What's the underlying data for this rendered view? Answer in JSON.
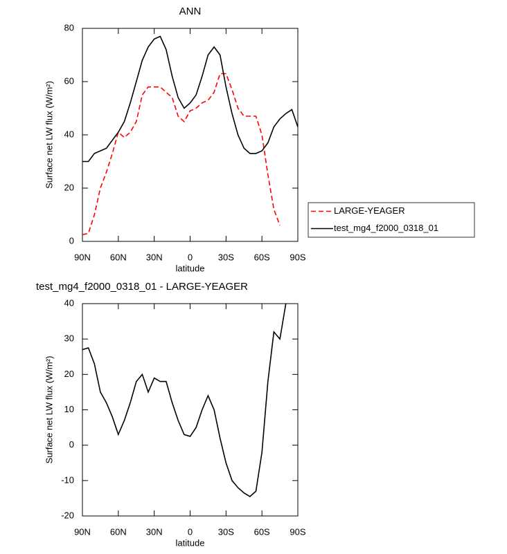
{
  "chart_data": [
    {
      "type": "line",
      "title": "ANN",
      "xlabel": "latitude",
      "ylabel": "Surface net LW flux (W/m²)",
      "x": [
        90,
        85,
        80,
        75,
        70,
        65,
        60,
        55,
        50,
        45,
        40,
        35,
        30,
        25,
        20,
        15,
        10,
        5,
        0,
        -5,
        -10,
        -15,
        -20,
        -25,
        -30,
        -35,
        -40,
        -45,
        -50,
        -55,
        -60,
        -65,
        -70,
        -75,
        -80,
        -85,
        -90
      ],
      "series": [
        {
          "name": "LARGE-YEAGER",
          "color": "#ff0000",
          "linestyle": "dashed",
          "values": [
            2.5,
            3,
            10,
            20,
            26,
            33,
            41,
            39,
            41,
            45,
            55,
            58,
            58,
            58,
            56,
            54,
            47,
            45,
            49,
            50,
            52,
            53,
            56,
            63,
            63,
            57,
            50,
            47,
            47,
            47,
            40,
            25,
            12,
            6,
            null,
            null,
            null
          ]
        },
        {
          "name": "test_mg4_f2000_0318_01",
          "color": "#000000",
          "linestyle": "solid",
          "values": [
            30,
            30,
            33,
            34,
            35,
            38,
            41,
            45,
            52,
            60,
            68,
            73,
            76,
            77,
            72,
            62,
            54,
            50,
            52,
            55,
            62,
            70,
            73,
            70,
            58,
            48,
            40,
            35,
            33,
            33,
            34,
            37,
            43,
            46,
            48,
            49.5,
            43
          ]
        }
      ],
      "xlim": [
        90,
        -90
      ],
      "xticks": [
        {
          "value": 90,
          "label": "90N"
        },
        {
          "value": 60,
          "label": "60N"
        },
        {
          "value": 30,
          "label": "30N"
        },
        0,
        {
          "value": -30,
          "label": "30S"
        },
        {
          "value": -60,
          "label": "60S"
        },
        {
          "value": -90,
          "label": "90S"
        }
      ],
      "ylim": [
        0,
        80
      ],
      "yticks": [
        0,
        20,
        40,
        60,
        80
      ],
      "legend": "outside-right"
    },
    {
      "type": "line",
      "title": "test_mg4_f2000_0318_01 - LARGE-YEAGER",
      "xlabel": "latitude",
      "ylabel": "Surface net LW flux (W/m²)",
      "x": [
        90,
        85,
        80,
        75,
        70,
        65,
        60,
        55,
        50,
        45,
        40,
        35,
        30,
        25,
        20,
        15,
        10,
        5,
        0,
        -5,
        -10,
        -15,
        -20,
        -25,
        -30,
        -35,
        -40,
        -45,
        -50,
        -55,
        -60,
        -65,
        -70,
        -75,
        -80
      ],
      "color": "#000000",
      "values": [
        27,
        27.5,
        23,
        15,
        12,
        8,
        3,
        7,
        12,
        18,
        20,
        15,
        19,
        18,
        18,
        12,
        7,
        3,
        2.5,
        5,
        10,
        14,
        10,
        2,
        -5,
        -10,
        -12,
        -13.5,
        -14.5,
        -13,
        -2,
        18,
        32,
        30,
        40
      ],
      "xlim": [
        90,
        -90
      ],
      "xticks": [
        {
          "value": 90,
          "label": "90N"
        },
        {
          "value": 60,
          "label": "60N"
        },
        {
          "value": 30,
          "label": "30N"
        },
        0,
        {
          "value": -30,
          "label": "30S"
        },
        {
          "value": -60,
          "label": "60S"
        },
        {
          "value": -90,
          "label": "90S"
        }
      ],
      "ylim": [
        -20,
        40
      ],
      "yticks": [
        -20,
        -10,
        0,
        10,
        20,
        30,
        40
      ]
    }
  ]
}
